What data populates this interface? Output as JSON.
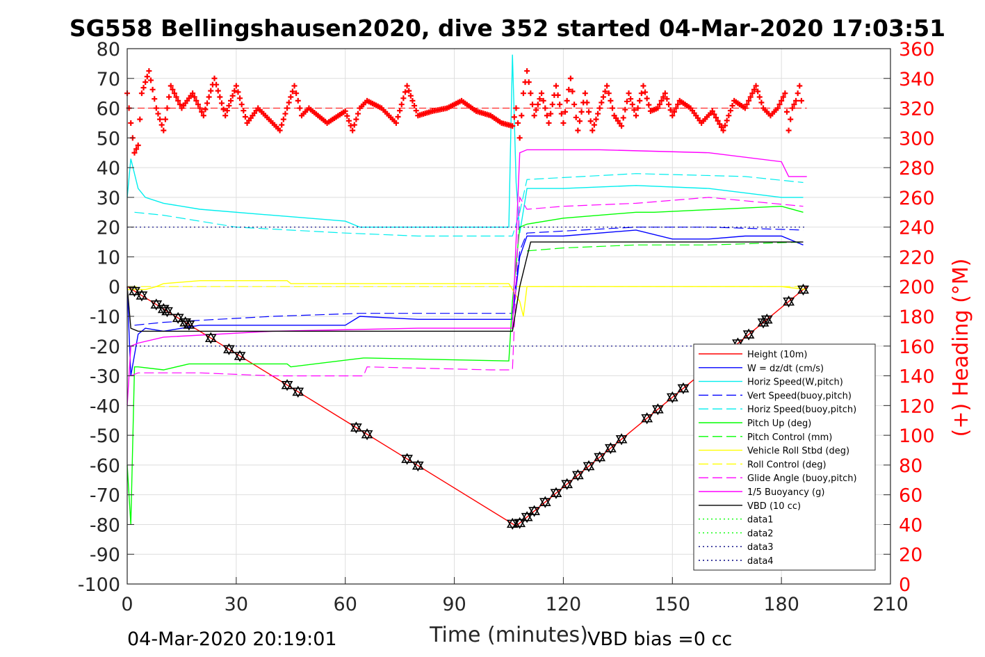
{
  "chart_data": {
    "type": "line",
    "title": "SG558 Bellingshausen2020, dive 352 started 04-Mar-2020 17:03:51",
    "xlabel": "Time (minutes)",
    "ylabel": "",
    "ylabel_right": "(+) Heading (°M)",
    "xlim": [
      0,
      210
    ],
    "ylim": [
      -100,
      80
    ],
    "ylim_right": [
      0,
      360
    ],
    "xticks": [
      "0",
      "30",
      "60",
      "90",
      "120",
      "150",
      "180",
      "210"
    ],
    "yticks": [
      "80",
      "70",
      "60",
      "50",
      "40",
      "30",
      "20",
      "10",
      "0",
      "-10",
      "-20",
      "-30",
      "-40",
      "-50",
      "-60",
      "-70",
      "-80",
      "-90",
      "-100"
    ],
    "yticks_right": [
      "360",
      "340",
      "320",
      "300",
      "280",
      "260",
      "240",
      "220",
      "200",
      "180",
      "160",
      "140",
      "120",
      "100",
      "80",
      "60",
      "40",
      "20",
      "0"
    ],
    "grid": true,
    "legend_position": "lower-right",
    "footer_left": "04-Mar-2020 20:19:01",
    "footer_right": "VBD bias =0 cc",
    "series": [
      {
        "name": "Height (10m)",
        "color": "#ff0000",
        "style": "solid",
        "x": [
          0,
          107,
          187
        ],
        "y": [
          0,
          -80.5,
          0
        ]
      },
      {
        "name": "W = dz/dt (cm/s)",
        "color": "#0000ff",
        "style": "solid",
        "x": [
          0,
          1,
          3,
          5,
          10,
          20,
          40,
          60,
          64,
          80,
          100,
          106,
          108,
          110,
          120,
          140,
          150,
          160,
          170,
          180,
          186
        ],
        "y": [
          0,
          -30,
          -16,
          -14,
          -15,
          -13,
          -13,
          -13,
          -10,
          -11,
          -11,
          -11,
          10,
          17,
          17,
          19,
          16,
          16,
          17,
          17,
          14
        ]
      },
      {
        "name": "Horiz Speed(W,pitch)",
        "color": "#00eeee",
        "style": "solid",
        "x": [
          0,
          1,
          3,
          5,
          10,
          20,
          40,
          60,
          64,
          80,
          100,
          105,
          106,
          107,
          108,
          110,
          120,
          140,
          160,
          180,
          186
        ],
        "y": [
          30,
          43,
          33,
          30,
          28,
          26,
          24,
          22,
          20,
          20,
          20,
          20,
          78,
          35,
          18,
          33,
          33,
          34,
          33,
          30,
          30
        ]
      },
      {
        "name": "Vert Speed(buoy,pitch)",
        "color": "#0000ff",
        "style": "dashed",
        "x": [
          2,
          10,
          40,
          64,
          80,
          106,
          108,
          110,
          140,
          160,
          186
        ],
        "y": [
          -13,
          -12,
          -10,
          -9,
          -9,
          -9,
          12,
          18,
          20,
          20,
          19
        ]
      },
      {
        "name": "Horiz Speed(buoy,pitch)",
        "color": "#00eeee",
        "style": "dashed",
        "x": [
          2,
          10,
          30,
          60,
          80,
          106,
          108,
          110,
          140,
          170,
          186
        ],
        "y": [
          25,
          24,
          20,
          18,
          17,
          17,
          25,
          36,
          38,
          37,
          35
        ]
      },
      {
        "name": "Pitch Up (deg)",
        "color": "#00ff00",
        "style": "solid",
        "x": [
          0,
          1,
          2,
          3,
          10,
          17,
          18,
          44,
          45,
          65,
          66,
          105,
          106,
          108,
          110,
          120,
          140,
          144,
          145,
          180,
          186
        ],
        "y": [
          -60,
          -80,
          -27,
          -27,
          -28,
          -26,
          -26,
          -26,
          -27,
          -24,
          -24,
          -25,
          -5,
          20,
          21,
          23,
          25,
          25,
          25,
          27,
          25
        ]
      },
      {
        "name": "Pitch Control (mm)",
        "color": "#00ff00",
        "style": "dashed",
        "x": [
          110,
          120,
          140,
          160,
          186
        ],
        "y": [
          12,
          13,
          14,
          14,
          15
        ]
      },
      {
        "name": "Vehicle Roll Stbd (deg)",
        "color": "#ffff00",
        "style": "solid",
        "x": [
          0,
          5,
          8,
          10,
          20,
          30,
          40,
          44,
          45,
          60,
          80,
          100,
          105,
          108,
          109,
          110,
          120,
          140,
          160,
          180,
          187
        ],
        "y": [
          -1,
          -1,
          0,
          1,
          2,
          2,
          2,
          2,
          1,
          1,
          1,
          1,
          1,
          -5,
          -10,
          0,
          0,
          0,
          0,
          0,
          -1
        ]
      },
      {
        "name": "Roll Control (deg)",
        "color": "#ffff00",
        "style": "dashed",
        "x": [
          0,
          10,
          60,
          106,
          110,
          186
        ],
        "y": [
          0,
          0,
          0,
          0,
          0,
          0
        ]
      },
      {
        "name": "Glide Angle (buoy,pitch)",
        "color": "#ff00ff",
        "style": "dashed",
        "x": [
          1,
          3,
          10,
          20,
          40,
          65,
          66,
          100,
          106,
          108,
          110,
          120,
          140,
          160,
          186
        ],
        "y": [
          -30,
          -29,
          -29,
          -29,
          -30,
          -30,
          -27,
          -28,
          -28,
          30,
          26,
          27,
          28,
          30,
          27
        ]
      },
      {
        "name": "1/5 Buoyancy (g)",
        "color": "#ff00ff",
        "style": "solid",
        "x": [
          0,
          1,
          3,
          10,
          40,
          80,
          105,
          106,
          108,
          110,
          130,
          160,
          180,
          182,
          187
        ],
        "y": [
          -40,
          -20,
          -19,
          -17,
          -15,
          -14,
          -14,
          -14,
          45,
          46,
          46,
          45,
          42,
          37,
          37
        ]
      },
      {
        "name": "VBD (10 cc)",
        "color": "#000000",
        "style": "solid",
        "x": [
          0,
          1,
          3,
          10,
          100,
          106,
          108,
          111,
          186
        ],
        "y": [
          0,
          -14,
          -15,
          -15,
          -15,
          -15,
          0,
          15,
          15
        ]
      },
      {
        "name": "data1",
        "color": "#00ff00",
        "style": "dotted",
        "x": [],
        "y": []
      },
      {
        "name": "data2",
        "color": "#00ff00",
        "style": "dotted",
        "x": [],
        "y": []
      },
      {
        "name": "data3",
        "color": "#000080",
        "style": "dotted",
        "x": [
          0,
          187
        ],
        "y": [
          20,
          20
        ]
      },
      {
        "name": "data4",
        "color": "#000080",
        "style": "dotted",
        "x": [
          0,
          187
        ],
        "y": [
          -20,
          -20
        ]
      }
    ],
    "heading": {
      "name": "(+) Heading",
      "color": "#ff0000",
      "marker": "+",
      "axis": "right",
      "mean_deg": 320,
      "x": [
        0,
        1,
        2,
        3,
        4,
        6,
        8,
        10,
        12,
        15,
        18,
        21,
        24,
        27,
        30,
        33,
        36,
        40,
        42,
        44,
        46,
        48,
        50,
        55,
        60,
        62,
        64,
        66,
        70,
        74,
        77,
        80,
        84,
        88,
        92,
        96,
        100,
        103,
        106,
        107,
        108,
        109,
        110,
        112,
        114,
        116,
        118,
        120,
        122,
        124,
        126,
        128,
        130,
        132,
        134,
        136,
        138,
        140,
        142,
        144,
        146,
        148,
        150,
        152,
        155,
        158,
        161,
        164,
        167,
        170,
        173,
        175,
        177,
        179,
        181,
        182,
        183,
        184,
        185,
        186
      ],
      "y": [
        330,
        310,
        290,
        295,
        330,
        345,
        320,
        305,
        335,
        320,
        330,
        315,
        340,
        315,
        335,
        310,
        320,
        310,
        305,
        320,
        335,
        315,
        320,
        310,
        318,
        305,
        320,
        325,
        320,
        310,
        335,
        315,
        318,
        320,
        325,
        318,
        315,
        310,
        308,
        320,
        300,
        330,
        345,
        315,
        330,
        310,
        335,
        310,
        340,
        305,
        330,
        305,
        320,
        335,
        315,
        308,
        330,
        315,
        335,
        318,
        320,
        330,
        315,
        325,
        320,
        310,
        318,
        305,
        325,
        320,
        335,
        320,
        315,
        320,
        330,
        305,
        320,
        325,
        335,
        315
      ]
    }
  }
}
